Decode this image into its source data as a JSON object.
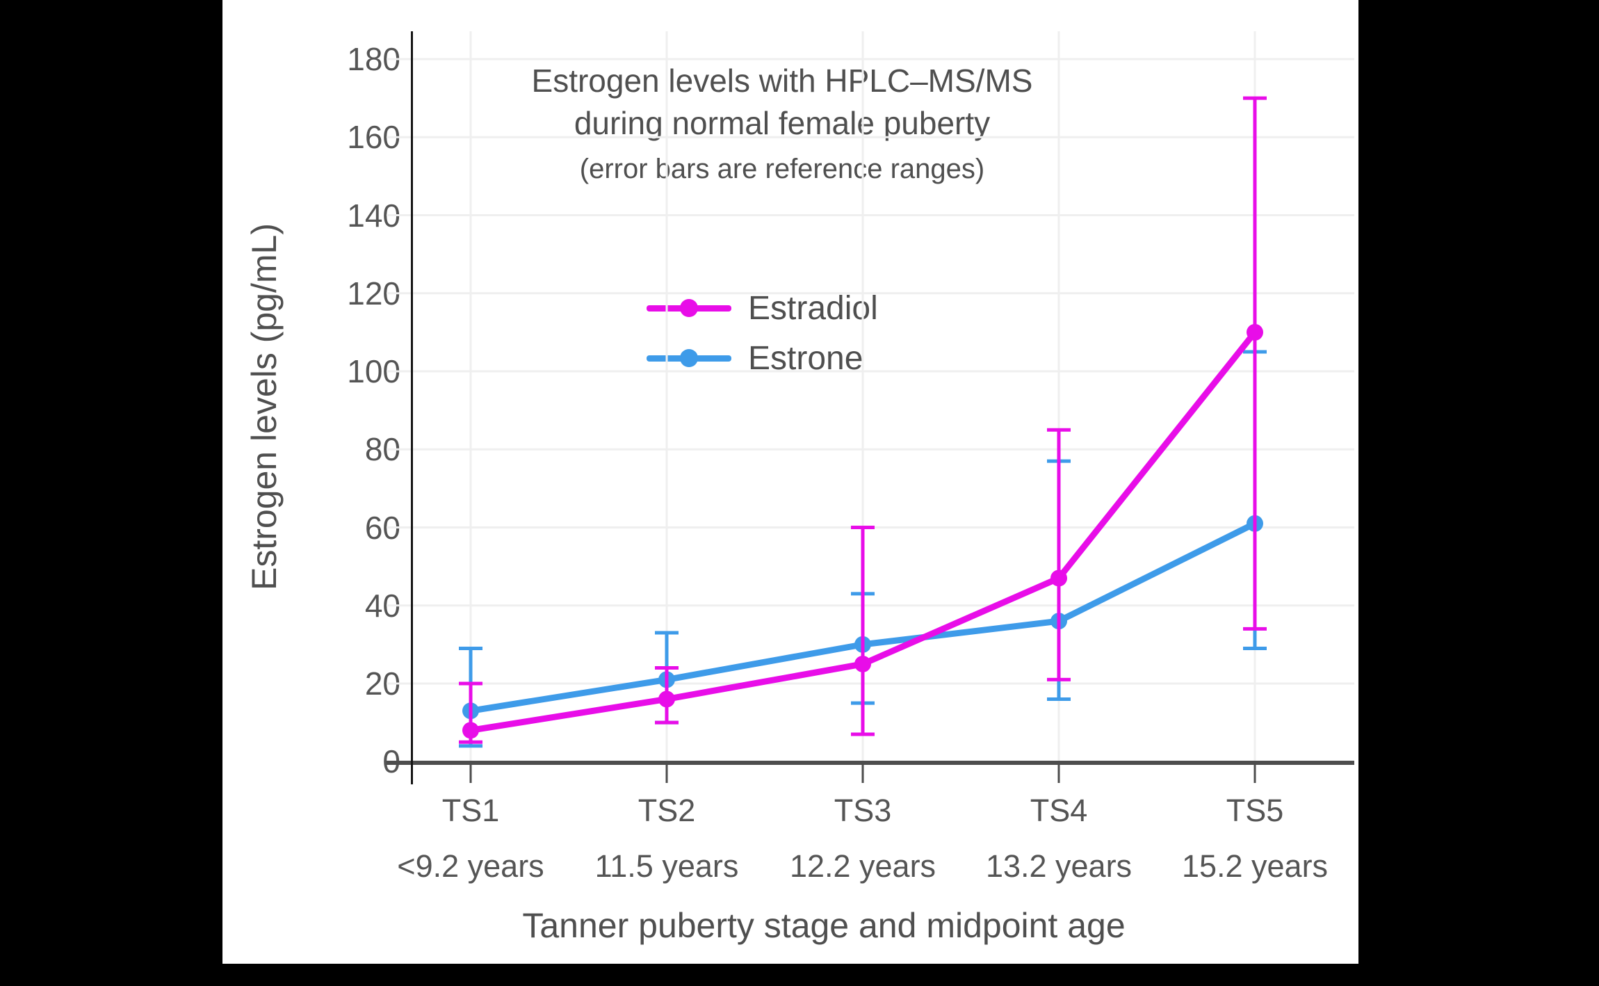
{
  "page": {
    "background_color": "#000000",
    "card_background_color": "#ffffff"
  },
  "chart": {
    "title_line1": "Estrogen levels with HPLC–MS/MS",
    "title_line2": "during normal female puberty",
    "subtitle": "(error bars are reference ranges)",
    "colors": {
      "estradiol": "#e80de8",
      "estrone": "#3e9be9",
      "grid": "#efefef",
      "x_axis": "#4d4d4d",
      "y_axis": "#151515",
      "text": "#4f4f4f",
      "tick_text": "#555555"
    }
  },
  "chart_data": {
    "type": "line",
    "title": "Estrogen levels with HPLC–MS/MS during normal female puberty",
    "subtitle": "(error bars are reference ranges)",
    "xlabel": "Tanner puberty stage and midpoint age",
    "ylabel": "Estrogen levels (pg/mL)",
    "categories": [
      "TS1",
      "TS2",
      "TS3",
      "TS4",
      "TS5"
    ],
    "category_sublabels": [
      "<9.2 years",
      "11.5 years",
      "12.2 years",
      "13.2 years",
      "15.2 years"
    ],
    "series": [
      {
        "name": "Estradiol",
        "color": "#e80de8",
        "values": [
          8,
          16,
          25,
          47,
          110
        ],
        "error_low": [
          5,
          10,
          7,
          21,
          34
        ],
        "error_high": [
          20,
          24,
          60,
          85,
          170
        ]
      },
      {
        "name": "Estrone",
        "color": "#3e9be9",
        "values": [
          13,
          21,
          30,
          36,
          61
        ],
        "error_low": [
          4,
          10,
          15,
          16,
          29
        ],
        "error_high": [
          29,
          33,
          43,
          77,
          105
        ]
      }
    ],
    "ylim": [
      0,
      180
    ],
    "yticks": [
      0,
      20,
      40,
      60,
      80,
      100,
      120,
      140,
      160,
      180
    ],
    "grid": true,
    "legend_position": "upper center",
    "error_bar_note": "error bars are reference ranges"
  }
}
